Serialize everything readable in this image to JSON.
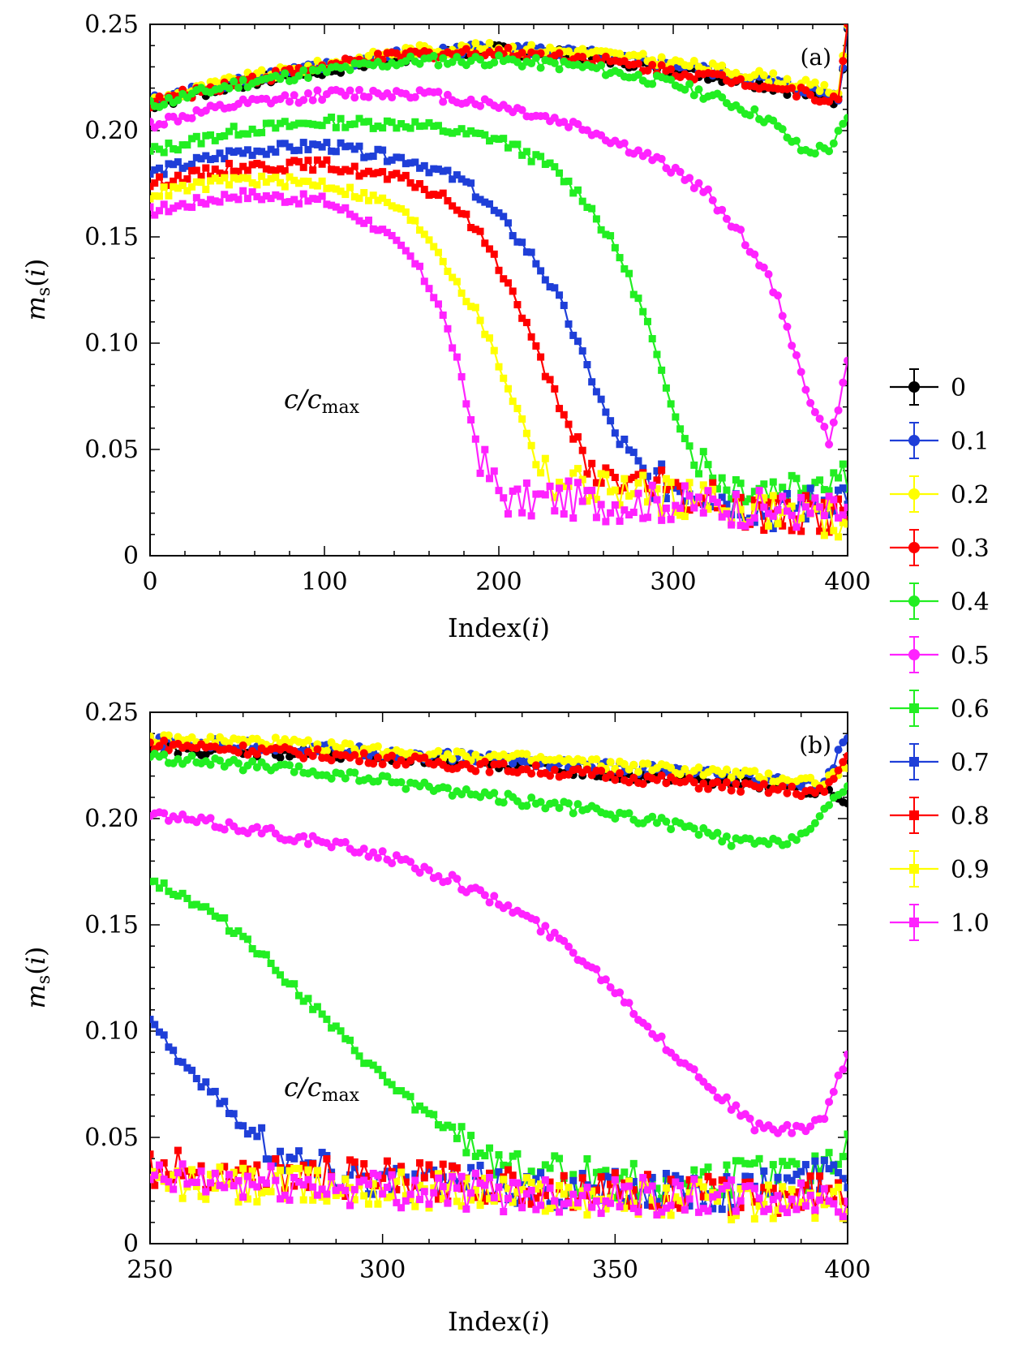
{
  "legend": {
    "entries": [
      "0",
      "0.1",
      "0.2",
      "0.3",
      "0.4",
      "0.5",
      "0.6",
      "0.7",
      "0.8",
      "0.9",
      "1.0"
    ]
  },
  "chart_data": [
    {
      "type": "line",
      "panel_label": "(a)",
      "xlabel": "Index(i)",
      "ylabel": "m_s(i)",
      "annotation": "c/c_max",
      "xlim": [
        0,
        400
      ],
      "ylim": [
        0,
        0.25
      ],
      "xticks": [
        0,
        100,
        200,
        300,
        400
      ],
      "xtick_labels": [
        "0",
        "100",
        "200",
        "300",
        "400"
      ],
      "yticks": [
        0,
        0.05,
        0.1,
        0.15,
        0.2,
        0.25
      ],
      "ytick_labels": [
        "0",
        "0.05",
        "0.10",
        "0.15",
        "0.20",
        "0.25"
      ],
      "grid": false,
      "legend_position": "right",
      "series": [
        {
          "name": "0",
          "color": "#000000",
          "marker": "circle",
          "x": [
            0,
            50,
            100,
            150,
            200,
            250,
            300,
            350,
            395,
            400
          ],
          "y": [
            0.212,
            0.222,
            0.228,
            0.235,
            0.238,
            0.235,
            0.229,
            0.222,
            0.214,
            0.25
          ]
        },
        {
          "name": "0.1",
          "color": "#1f3fd8",
          "marker": "circle",
          "x": [
            0,
            50,
            100,
            150,
            200,
            250,
            300,
            350,
            395,
            400
          ],
          "y": [
            0.214,
            0.224,
            0.23,
            0.237,
            0.239,
            0.236,
            0.231,
            0.224,
            0.216,
            0.25
          ]
        },
        {
          "name": "0.2",
          "color": "#ffff00",
          "marker": "circle",
          "x": [
            0,
            50,
            100,
            150,
            200,
            250,
            300,
            350,
            395,
            400
          ],
          "y": [
            0.214,
            0.224,
            0.231,
            0.238,
            0.239,
            0.237,
            0.232,
            0.226,
            0.218,
            0.25
          ]
        },
        {
          "name": "0.3",
          "color": "#ff0000",
          "marker": "circle",
          "x": [
            0,
            50,
            100,
            150,
            200,
            250,
            300,
            350,
            395,
            400
          ],
          "y": [
            0.213,
            0.223,
            0.23,
            0.236,
            0.237,
            0.234,
            0.228,
            0.222,
            0.214,
            0.25
          ]
        },
        {
          "name": "0.4",
          "color": "#22ee22",
          "marker": "circle",
          "x": [
            0,
            50,
            100,
            150,
            200,
            250,
            300,
            330,
            355,
            375,
            390,
            400
          ],
          "y": [
            0.212,
            0.222,
            0.228,
            0.233,
            0.233,
            0.23,
            0.222,
            0.214,
            0.205,
            0.19,
            0.192,
            0.205
          ]
        },
        {
          "name": "0.5",
          "color": "#ff22ff",
          "marker": "circle",
          "x": [
            0,
            50,
            100,
            150,
            200,
            250,
            300,
            320,
            340,
            355,
            365,
            375,
            390,
            400
          ],
          "y": [
            0.203,
            0.212,
            0.217,
            0.218,
            0.212,
            0.201,
            0.182,
            0.17,
            0.15,
            0.13,
            0.11,
            0.08,
            0.053,
            0.09
          ]
        },
        {
          "name": "0.6",
          "color": "#22ee22",
          "marker": "square",
          "x": [
            0,
            50,
            100,
            150,
            200,
            230,
            250,
            270,
            285,
            295,
            310,
            330,
            360,
            400
          ],
          "y": [
            0.19,
            0.2,
            0.204,
            0.203,
            0.196,
            0.183,
            0.167,
            0.14,
            0.11,
            0.08,
            0.05,
            0.034,
            0.032,
            0.04
          ]
        },
        {
          "name": "0.7",
          "color": "#1f3fd8",
          "marker": "square",
          "x": [
            0,
            50,
            100,
            150,
            180,
            200,
            220,
            235,
            245,
            255,
            265,
            275,
            285,
            320,
            360,
            400
          ],
          "y": [
            0.18,
            0.19,
            0.193,
            0.186,
            0.176,
            0.16,
            0.14,
            0.12,
            0.1,
            0.08,
            0.06,
            0.045,
            0.036,
            0.03,
            0.02,
            0.03
          ]
        },
        {
          "name": "0.8",
          "color": "#ff0000",
          "marker": "square",
          "x": [
            0,
            50,
            100,
            150,
            175,
            195,
            210,
            220,
            230,
            240,
            250,
            300,
            350,
            400
          ],
          "y": [
            0.175,
            0.183,
            0.184,
            0.176,
            0.165,
            0.145,
            0.12,
            0.1,
            0.08,
            0.06,
            0.04,
            0.03,
            0.02,
            0.02
          ]
        },
        {
          "name": "0.9",
          "color": "#ffff00",
          "marker": "square",
          "x": [
            0,
            50,
            100,
            140,
            160,
            175,
            190,
            200,
            210,
            220,
            230,
            300,
            350,
            400
          ],
          "y": [
            0.17,
            0.177,
            0.175,
            0.165,
            0.15,
            0.13,
            0.11,
            0.09,
            0.07,
            0.05,
            0.035,
            0.028,
            0.022,
            0.015
          ]
        },
        {
          "name": "1.0",
          "color": "#ff22ff",
          "marker": "square",
          "x": [
            0,
            50,
            100,
            130,
            150,
            165,
            175,
            182,
            190,
            200,
            210,
            230,
            260,
            300,
            350,
            400
          ],
          "y": [
            0.162,
            0.17,
            0.167,
            0.155,
            0.14,
            0.12,
            0.095,
            0.07,
            0.045,
            0.03,
            0.025,
            0.027,
            0.025,
            0.025,
            0.022,
            0.02
          ]
        }
      ]
    },
    {
      "type": "line",
      "panel_label": "(b)",
      "xlabel": "Index(i)",
      "ylabel": "m_s(i)",
      "annotation": "c/c_max",
      "xlim": [
        250,
        400
      ],
      "ylim": [
        0,
        0.25
      ],
      "xticks": [
        250,
        300,
        350,
        400
      ],
      "xtick_labels": [
        "250",
        "300",
        "350",
        "400"
      ],
      "yticks": [
        0,
        0.05,
        0.1,
        0.15,
        0.2,
        0.25
      ],
      "ytick_labels": [
        "0",
        "0.05",
        "0.10",
        "0.15",
        "0.20",
        "0.25"
      ],
      "grid": false,
      "legend_position": "right",
      "series": [
        {
          "name": "0",
          "color": "#000000",
          "marker": "circle",
          "x": [
            250,
            275,
            300,
            325,
            350,
            375,
            395,
            400
          ],
          "y": [
            0.233,
            0.231,
            0.229,
            0.226,
            0.221,
            0.217,
            0.213,
            0.205
          ]
        },
        {
          "name": "0.1",
          "color": "#1f3fd8",
          "marker": "circle",
          "x": [
            250,
            275,
            300,
            325,
            350,
            375,
            395,
            400
          ],
          "y": [
            0.236,
            0.234,
            0.231,
            0.228,
            0.224,
            0.22,
            0.215,
            0.24
          ]
        },
        {
          "name": "0.2",
          "color": "#ffff00",
          "marker": "circle",
          "x": [
            250,
            275,
            300,
            325,
            350,
            375,
            395,
            400
          ],
          "y": [
            0.237,
            0.236,
            0.232,
            0.229,
            0.225,
            0.221,
            0.217,
            0.225
          ]
        },
        {
          "name": "0.3",
          "color": "#ff0000",
          "marker": "circle",
          "x": [
            250,
            275,
            300,
            325,
            350,
            375,
            395,
            400
          ],
          "y": [
            0.235,
            0.232,
            0.228,
            0.224,
            0.22,
            0.215,
            0.212,
            0.23
          ]
        },
        {
          "name": "0.4",
          "color": "#22ee22",
          "marker": "circle",
          "x": [
            250,
            275,
            300,
            325,
            350,
            365,
            375,
            385,
            392,
            400
          ],
          "y": [
            0.229,
            0.224,
            0.218,
            0.21,
            0.202,
            0.196,
            0.189,
            0.188,
            0.195,
            0.215
          ]
        },
        {
          "name": "0.5",
          "color": "#ff22ff",
          "marker": "circle",
          "x": [
            250,
            275,
            300,
            315,
            330,
            340,
            350,
            360,
            370,
            380,
            390,
            395,
            400
          ],
          "y": [
            0.202,
            0.194,
            0.183,
            0.171,
            0.155,
            0.14,
            0.12,
            0.095,
            0.075,
            0.055,
            0.053,
            0.06,
            0.088
          ]
        },
        {
          "name": "0.6",
          "color": "#22ee22",
          "marker": "square",
          "x": [
            250,
            260,
            270,
            280,
            290,
            300,
            310,
            320,
            330,
            350,
            370,
            390,
            400
          ],
          "y": [
            0.172,
            0.16,
            0.145,
            0.123,
            0.1,
            0.078,
            0.06,
            0.045,
            0.035,
            0.03,
            0.03,
            0.032,
            0.045
          ]
        },
        {
          "name": "0.7",
          "color": "#1f3fd8",
          "marker": "square",
          "x": [
            250,
            255,
            260,
            265,
            270,
            275,
            280,
            290,
            300,
            320,
            340,
            360,
            380,
            400
          ],
          "y": [
            0.108,
            0.09,
            0.078,
            0.068,
            0.055,
            0.048,
            0.04,
            0.034,
            0.03,
            0.028,
            0.025,
            0.025,
            0.025,
            0.035
          ]
        },
        {
          "name": "0.8",
          "color": "#ff0000",
          "marker": "square",
          "x": [
            250,
            275,
            300,
            325,
            350,
            375,
            400
          ],
          "y": [
            0.036,
            0.032,
            0.03,
            0.028,
            0.025,
            0.022,
            0.025
          ]
        },
        {
          "name": "0.9",
          "color": "#ffff00",
          "marker": "square",
          "x": [
            250,
            275,
            300,
            325,
            350,
            375,
            400
          ],
          "y": [
            0.028,
            0.027,
            0.026,
            0.024,
            0.022,
            0.02,
            0.018
          ]
        },
        {
          "name": "1.0",
          "color": "#ff22ff",
          "marker": "square",
          "x": [
            250,
            275,
            300,
            325,
            350,
            375,
            400
          ],
          "y": [
            0.03,
            0.028,
            0.026,
            0.024,
            0.023,
            0.021,
            0.02
          ]
        }
      ]
    }
  ]
}
